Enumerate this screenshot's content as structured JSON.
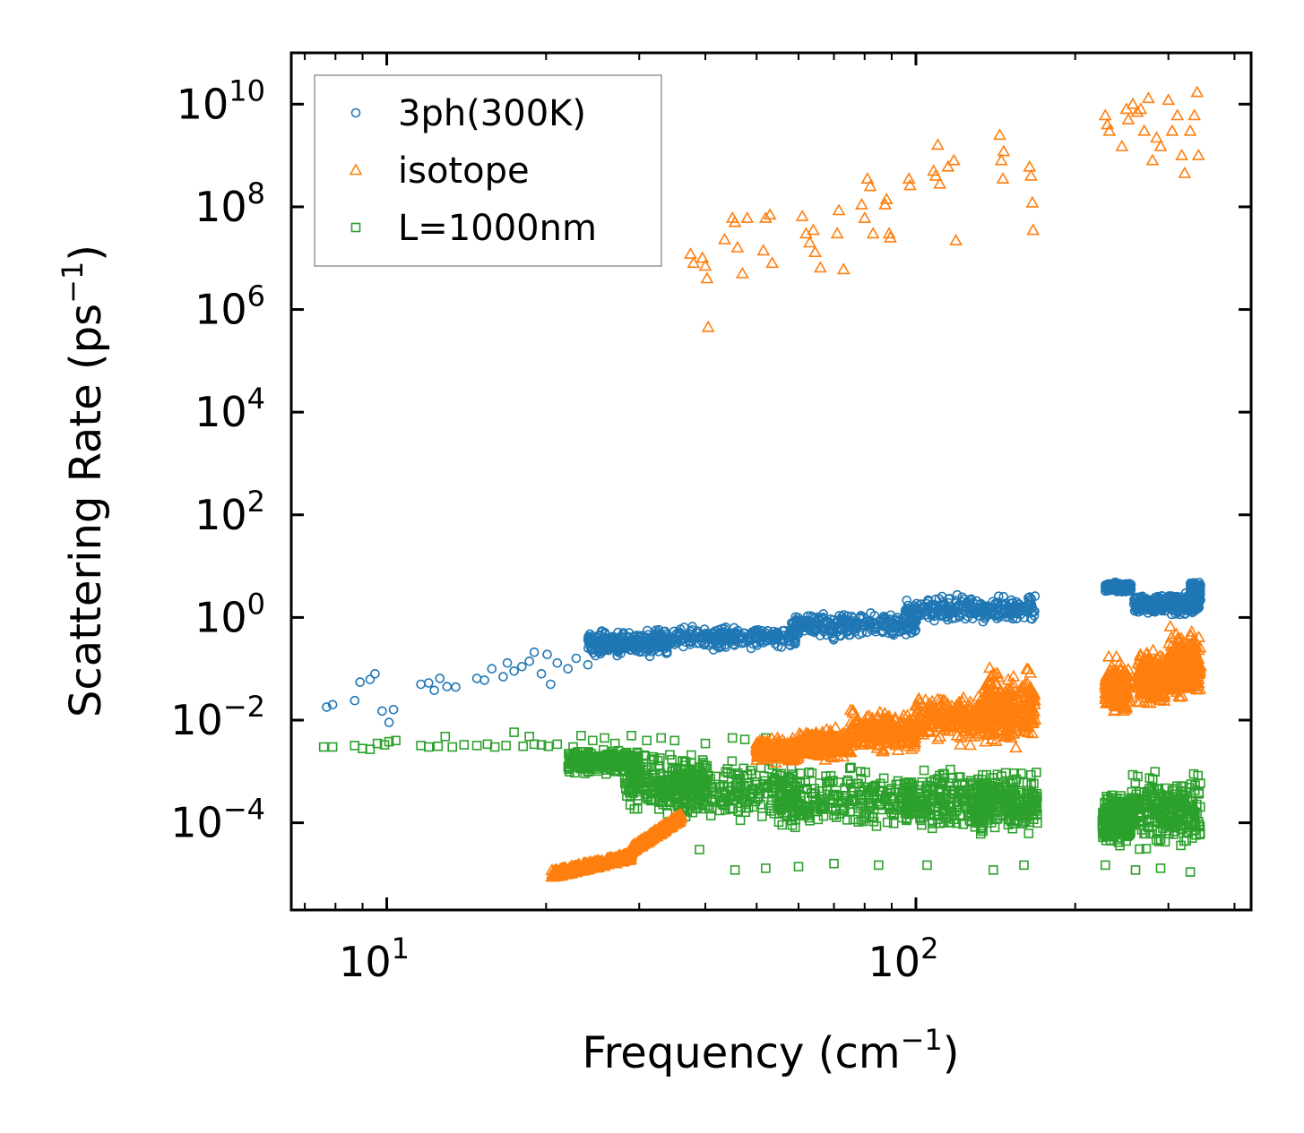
{
  "chart_data": {
    "type": "scatter",
    "title": "",
    "xlabel": "Frequency (cm",
    "xlabel_sup": "−1",
    "xlabel_end": ")",
    "ylabel": "Scattering Rate (ps",
    "ylabel_sup": "−1",
    "ylabel_end": ")",
    "xscale": "log",
    "yscale": "log",
    "xlim": [
      6.6,
      430
    ],
    "ylim": [
      2e-06,
      100000000000.0
    ],
    "x_ticks": [
      {
        "value": 10,
        "base": "10",
        "exp": "1"
      },
      {
        "value": 100,
        "base": "10",
        "exp": "2"
      }
    ],
    "y_ticks": [
      {
        "value": 0.0001,
        "base": "10",
        "exp": "−4"
      },
      {
        "value": 0.01,
        "base": "10",
        "exp": "−2"
      },
      {
        "value": 1,
        "base": "10",
        "exp": "0"
      },
      {
        "value": 100,
        "base": "10",
        "exp": "2"
      },
      {
        "value": 10000,
        "base": "10",
        "exp": "4"
      },
      {
        "value": 1000000.0,
        "base": "10",
        "exp": "6"
      },
      {
        "value": 100000000.0,
        "base": "10",
        "exp": "8"
      },
      {
        "value": 10000000000.0,
        "base": "10",
        "exp": "10"
      }
    ],
    "legend_position": "top-left",
    "series": [
      {
        "name": "3ph(300K)",
        "marker": "circle",
        "color": "#1f77b4",
        "points": [
          [
            7.7,
            0.018
          ],
          [
            7.9,
            0.02
          ],
          [
            8.7,
            0.024
          ],
          [
            8.9,
            0.055
          ],
          [
            9.3,
            0.062
          ],
          [
            9.5,
            0.08
          ],
          [
            9.8,
            0.015
          ],
          [
            10.1,
            0.009
          ],
          [
            10.3,
            0.016
          ],
          [
            11.6,
            0.05
          ],
          [
            12.0,
            0.053
          ],
          [
            12.3,
            0.038
          ],
          [
            12.6,
            0.065
          ],
          [
            13.0,
            0.045
          ],
          [
            13.5,
            0.044
          ],
          [
            14.8,
            0.065
          ],
          [
            15.3,
            0.06
          ],
          [
            15.8,
            0.1
          ],
          [
            16.6,
            0.07
          ],
          [
            16.9,
            0.13
          ],
          [
            17.4,
            0.09
          ],
          [
            18.0,
            0.11
          ],
          [
            18.6,
            0.14
          ],
          [
            19.0,
            0.21
          ],
          [
            19.6,
            0.08
          ],
          [
            20.1,
            0.19
          ],
          [
            20.4,
            0.05
          ],
          [
            21.0,
            0.13
          ],
          [
            22.0,
            0.1
          ],
          [
            22.8,
            0.16
          ],
          [
            24.0,
            0.12
          ],
          [
            25.0,
            0.22
          ],
          [
            26.0,
            0.3
          ],
          [
            27.5,
            0.25
          ],
          [
            29.0,
            0.35
          ],
          [
            31.0,
            0.32
          ],
          [
            33.0,
            0.4
          ],
          [
            35.0,
            0.3
          ],
          [
            38.0,
            0.38
          ],
          [
            41.0,
            0.42
          ],
          [
            45.0,
            0.45
          ],
          [
            48.0,
            0.4
          ],
          [
            52.0,
            0.5
          ],
          [
            56.0,
            0.55
          ],
          [
            60.0,
            0.48
          ],
          [
            65.0,
            0.6
          ],
          [
            70.0,
            0.65
          ],
          [
            75.0,
            0.75
          ],
          [
            80.0,
            0.7
          ],
          [
            86.0,
            0.9
          ],
          [
            92.0,
            1.0
          ],
          [
            100.0,
            1.1
          ],
          [
            108.0,
            1.2
          ],
          [
            116.0,
            1.4
          ],
          [
            125.0,
            1.5
          ],
          [
            135.0,
            1.6
          ],
          [
            145.0,
            1.8
          ],
          [
            155.0,
            2.0
          ],
          [
            163.0,
            2.4
          ],
          [
            168.0,
            2.6
          ]
        ],
        "bands": [
          {
            "x": [
              24,
              34
            ],
            "y": [
              0.15,
              0.6
            ]
          },
          {
            "x": [
              32,
              60
            ],
            "y": [
              0.22,
              0.75
            ]
          },
          {
            "x": [
              58,
              100
            ],
            "y": [
              0.35,
              1.5
            ]
          },
          {
            "x": [
              95,
              168
            ],
            "y": [
              0.7,
              3.0
            ]
          },
          {
            "x": [
              228,
              255
            ],
            "y": [
              3.0,
              5.0
            ]
          },
          {
            "x": [
              258,
              340
            ],
            "y": [
              1.0,
              3.3
            ]
          },
          {
            "x": [
              330,
              345
            ],
            "y": [
              1.2,
              6.0
            ]
          }
        ]
      },
      {
        "name": "isotope",
        "marker": "triangle",
        "color": "#ff7f0e",
        "points": [
          [
            37.5,
            12000000.0
          ],
          [
            38.0,
            8000000.0
          ],
          [
            39.5,
            10000000.0
          ],
          [
            40.0,
            7000000.0
          ],
          [
            40.3,
            4000000.0
          ],
          [
            40.5,
            450000.0
          ],
          [
            43.5,
            23000000.0
          ],
          [
            45.0,
            60000000.0
          ],
          [
            45.5,
            50000000.0
          ],
          [
            46.0,
            16000000.0
          ],
          [
            47.0,
            5000000.0
          ],
          [
            48.0,
            60000000.0
          ],
          [
            51.5,
            14000000.0
          ],
          [
            52.0,
            60000000.0
          ],
          [
            53.0,
            70000000.0
          ],
          [
            53.5,
            8000000.0
          ],
          [
            61.0,
            65000000.0
          ],
          [
            62.0,
            30000000.0
          ],
          [
            63.0,
            20000000.0
          ],
          [
            64.0,
            35000000.0
          ],
          [
            64.5,
            13000000.0
          ],
          [
            66.0,
            6500000.0
          ],
          [
            71.5,
            85000000.0
          ],
          [
            71.0,
            30000000.0
          ],
          [
            73.0,
            6000000.0
          ],
          [
            79.0,
            110000000.0
          ],
          [
            80.0,
            60000000.0
          ],
          [
            81.0,
            350000000.0
          ],
          [
            82.0,
            250000000.0
          ],
          [
            83.0,
            30000000.0
          ],
          [
            87.5,
            110000000.0
          ],
          [
            88.0,
            140000000.0
          ],
          [
            89.0,
            30000000.0
          ],
          [
            89.5,
            25000000.0
          ],
          [
            97.0,
            350000000.0
          ],
          [
            97.5,
            260000000.0
          ],
          [
            108.0,
            500000000.0
          ],
          [
            109.0,
            400000000.0
          ],
          [
            110.0,
            1600000000.0
          ],
          [
            111.0,
            280000000.0
          ],
          [
            115.0,
            600000000.0
          ],
          [
            118.0,
            800000000.0
          ],
          [
            119.0,
            22000000.0
          ],
          [
            144.0,
            2500000000.0
          ],
          [
            145.0,
            800000000.0
          ],
          [
            146.0,
            350000000.0
          ],
          [
            146.5,
            1200000000.0
          ],
          [
            164.0,
            600000000.0
          ],
          [
            165.0,
            400000000.0
          ],
          [
            166.0,
            120000000.0
          ],
          [
            166.5,
            35000000.0
          ],
          [
            228.0,
            6000000000.0
          ],
          [
            230.0,
            4000000000.0
          ],
          [
            232.0,
            3000000000.0
          ],
          [
            245.0,
            1500000000.0
          ],
          [
            250.0,
            8000000000.0
          ],
          [
            252.0,
            5000000000.0
          ],
          [
            257.0,
            10000000000.0
          ],
          [
            262.0,
            7000000000.0
          ],
          [
            266.0,
            8000000000.0
          ],
          [
            270.0,
            3000000000.0
          ],
          [
            275.0,
            13000000000.0
          ],
          [
            280.0,
            800000000.0
          ],
          [
            285.0,
            2200000000.0
          ],
          [
            290.0,
            1500000000.0
          ],
          [
            300.0,
            12000000000.0
          ],
          [
            305.0,
            3000000000.0
          ],
          [
            312.0,
            6000000000.0
          ],
          [
            318.0,
            1000000000.0
          ],
          [
            322.0,
            450000000.0
          ],
          [
            330.0,
            3000000000.0
          ],
          [
            336.0,
            6000000000.0
          ],
          [
            340.0,
            17000000000.0
          ],
          [
            342.0,
            1000000000.0
          ]
        ],
        "bands": [
          {
            "x": [
              20.5,
              29
            ],
            "y": [
              1e-05,
              2.2e-05
            ],
            "trend": true
          },
          {
            "x": [
              29,
              36
            ],
            "y": [
              3e-05,
              0.00013
            ],
            "trend": true
          },
          {
            "x": [
              50,
              60
            ],
            "y": [
              0.0013,
              0.005
            ]
          },
          {
            "x": [
              60,
              75
            ],
            "y": [
              0.0015,
              0.008
            ]
          },
          {
            "x": [
              75,
              100
            ],
            "y": [
              0.002,
              0.018
            ]
          },
          {
            "x": [
              100,
              140
            ],
            "y": [
              0.003,
              0.04
            ]
          },
          {
            "x": [
              135,
              168
            ],
            "y": [
              0.002,
              0.15
            ]
          },
          {
            "x": [
              228,
              252
            ],
            "y": [
              0.01,
              0.18
            ]
          },
          {
            "x": [
              262,
              295
            ],
            "y": [
              0.015,
              0.3
            ]
          },
          {
            "x": [
              300,
              345
            ],
            "y": [
              0.02,
              0.8
            ]
          }
        ]
      },
      {
        "name": "L=1000nm",
        "marker": "square",
        "color": "#2ca02c",
        "points": [
          [
            7.6,
            0.003
          ],
          [
            7.9,
            0.003
          ],
          [
            8.7,
            0.0032
          ],
          [
            9.0,
            0.0028
          ],
          [
            9.3,
            0.0027
          ],
          [
            9.6,
            0.0035
          ],
          [
            9.9,
            0.0033
          ],
          [
            10.1,
            0.0038
          ],
          [
            10.4,
            0.004
          ],
          [
            11.6,
            0.0032
          ],
          [
            12.0,
            0.003
          ],
          [
            12.5,
            0.0031
          ],
          [
            12.9,
            0.0048
          ],
          [
            13.3,
            0.003
          ],
          [
            14.0,
            0.0033
          ],
          [
            14.8,
            0.0032
          ],
          [
            15.5,
            0.0034
          ],
          [
            16.0,
            0.003
          ],
          [
            16.8,
            0.0032
          ],
          [
            17.4,
            0.0058
          ],
          [
            18.1,
            0.0031
          ],
          [
            18.6,
            0.0048
          ],
          [
            19.0,
            0.0034
          ],
          [
            19.6,
            0.0033
          ],
          [
            20.2,
            0.0031
          ],
          [
            21.0,
            0.0034
          ],
          [
            22.5,
            0.003
          ],
          [
            23.3,
            0.005
          ],
          [
            24.5,
            0.004
          ],
          [
            25.8,
            0.0045
          ],
          [
            27.0,
            0.0035
          ],
          [
            29.0,
            0.005
          ],
          [
            31.0,
            0.004
          ],
          [
            33.0,
            0.0045
          ],
          [
            35.0,
            0.004
          ],
          [
            40.0,
            0.0035
          ],
          [
            45.0,
            0.0045
          ],
          [
            47.5,
            0.0042
          ],
          [
            52.0,
            0.0045
          ],
          [
            39.0,
            3e-05
          ],
          [
            45.5,
            1.2e-05
          ],
          [
            52.0,
            1.3e-05
          ],
          [
            60.0,
            1.4e-05
          ],
          [
            70.0,
            1.6e-05
          ],
          [
            85.0,
            1.5e-05
          ],
          [
            105.0,
            1.5e-05
          ],
          [
            140.0,
            1.2e-05
          ],
          [
            160.0,
            1.5e-05
          ],
          [
            228.0,
            1.5e-05
          ],
          [
            260.0,
            1.2e-05
          ],
          [
            290.0,
            1.3e-05
          ],
          [
            330.0,
            1.1e-05
          ]
        ],
        "bands": [
          {
            "x": [
              22,
              30
            ],
            "y": [
              0.0008,
              0.003
            ]
          },
          {
            "x": [
              28,
              40
            ],
            "y": [
              0.00012,
              0.003
            ]
          },
          {
            "x": [
              35,
              60
            ],
            "y": [
              7e-05,
              0.002
            ]
          },
          {
            "x": [
              55,
              100
            ],
            "y": [
              5e-05,
              0.0015
            ]
          },
          {
            "x": [
              95,
              140
            ],
            "y": [
              4e-05,
              0.0018
            ]
          },
          {
            "x": [
              130,
              170
            ],
            "y": [
              5e-05,
              0.0013
            ]
          },
          {
            "x": [
              225,
              255
            ],
            "y": [
              3e-05,
              0.0005
            ]
          },
          {
            "x": [
              255,
              345
            ],
            "y": [
              2e-05,
              0.0013
            ]
          }
        ]
      }
    ]
  }
}
